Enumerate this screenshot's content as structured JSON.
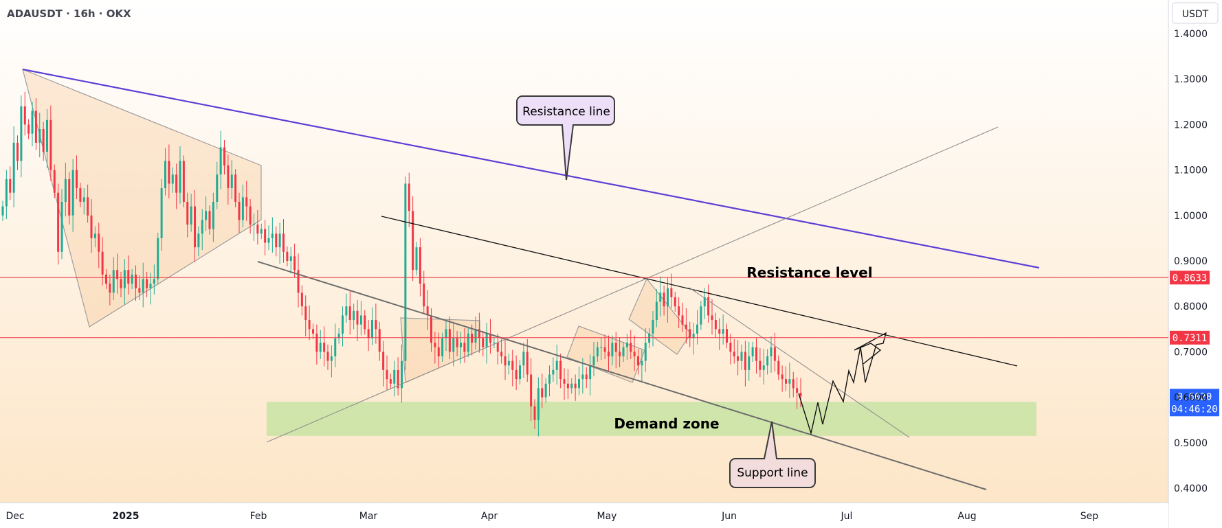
{
  "header": {
    "symbol": "ADAUSDT · 16h · OKX"
  },
  "price_scale": {
    "unit": "USDT"
  },
  "chart_data": {
    "type": "candlestick",
    "symbol": "ADAUSDT",
    "interval": "16h",
    "exchange": "OKX",
    "y_ticks": [
      "1.4000",
      "1.3000",
      "1.2000",
      "1.1000",
      "1.0000",
      "0.9000",
      "0.8000",
      "0.7000",
      "0.6000",
      "0.5000",
      "0.4000"
    ],
    "x_ticks": [
      {
        "label": "Dec",
        "bold": false
      },
      {
        "label": "2025",
        "bold": true
      },
      {
        "label": "Feb",
        "bold": false
      },
      {
        "label": "Mar",
        "bold": false
      },
      {
        "label": "Apr",
        "bold": false
      },
      {
        "label": "May",
        "bold": false
      },
      {
        "label": "Jun",
        "bold": false
      },
      {
        "label": "Jul",
        "bold": false
      },
      {
        "label": "Aug",
        "bold": false
      },
      {
        "label": "Sep",
        "bold": false
      }
    ],
    "ylim": [
      0.375,
      1.445
    ],
    "price_levels": [
      {
        "value": 0.8633,
        "label": "0.8633",
        "color": "#f23645"
      },
      {
        "value": 0.7311,
        "label": "0.7311",
        "color": "#f23645"
      }
    ],
    "last_price": {
      "value": 0.602,
      "label": "0.6020",
      "countdown": "04:46:20",
      "color": "#2962ff"
    },
    "annotations": {
      "resistance_line": "Resistance line",
      "resistance_level": "Resistance level",
      "demand_zone": "Demand zone",
      "support_line": "Support line"
    },
    "demand_zone": {
      "from": 0.515,
      "to": 0.59
    },
    "candles_close": [
      1.02,
      1.08,
      1.05,
      1.16,
      1.12,
      1.24,
      1.2,
      1.18,
      1.23,
      1.16,
      1.19,
      1.14,
      1.21,
      1.1,
      1.05,
      0.92,
      1.03,
      1.08,
      1.0,
      1.1,
      1.06,
      1.03,
      1.04,
      1.0,
      0.95,
      0.96,
      0.92,
      0.87,
      0.85,
      0.83,
      0.88,
      0.86,
      0.84,
      0.88,
      0.85,
      0.87,
      0.84,
      0.83,
      0.86,
      0.84,
      0.85,
      0.86,
      0.95,
      1.06,
      1.12,
      1.07,
      1.09,
      1.05,
      1.12,
      1.03,
      0.98,
      1.02,
      0.93,
      0.96,
      0.99,
      1.01,
      0.97,
      1.03,
      1.09,
      1.15,
      1.11,
      1.06,
      1.09,
      1.03,
      0.99,
      1.04,
      1.02,
      0.98,
      0.98,
      0.96,
      0.97,
      0.94,
      0.95,
      0.96,
      0.93,
      0.96,
      0.92,
      0.9,
      0.91,
      0.88,
      0.83,
      0.8,
      0.77,
      0.75,
      0.74,
      0.7,
      0.72,
      0.7,
      0.68,
      0.69,
      0.73,
      0.74,
      0.78,
      0.8,
      0.77,
      0.79,
      0.76,
      0.78,
      0.75,
      0.73,
      0.77,
      0.75,
      0.7,
      0.66,
      0.64,
      0.63,
      0.66,
      0.62,
      0.68,
      1.07,
      1.01,
      0.88,
      0.93,
      0.85,
      0.8,
      0.78,
      0.72,
      0.71,
      0.69,
      0.73,
      0.75,
      0.7,
      0.73,
      0.71,
      0.72,
      0.7,
      0.74,
      0.72,
      0.75,
      0.73,
      0.71,
      0.74,
      0.72,
      0.72,
      0.7,
      0.69,
      0.67,
      0.68,
      0.66,
      0.64,
      0.67,
      0.7,
      0.65,
      0.58,
      0.55,
      0.62,
      0.6,
      0.63,
      0.65,
      0.66,
      0.68,
      0.64,
      0.63,
      0.62,
      0.63,
      0.62,
      0.64,
      0.65,
      0.64,
      0.67,
      0.69,
      0.71,
      0.71,
      0.7,
      0.69,
      0.72,
      0.7,
      0.69,
      0.71,
      0.72,
      0.7,
      0.69,
      0.67,
      0.68,
      0.72,
      0.74,
      0.77,
      0.81,
      0.83,
      0.8,
      0.84,
      0.82,
      0.8,
      0.78,
      0.76,
      0.75,
      0.73,
      0.74,
      0.76,
      0.8,
      0.82,
      0.78,
      0.77,
      0.75,
      0.74,
      0.75,
      0.72,
      0.7,
      0.69,
      0.68,
      0.7,
      0.66,
      0.69,
      0.71,
      0.68,
      0.66,
      0.67,
      0.69,
      0.71,
      0.68,
      0.65,
      0.64,
      0.63,
      0.64,
      0.62,
      0.61,
      0.602
    ]
  }
}
